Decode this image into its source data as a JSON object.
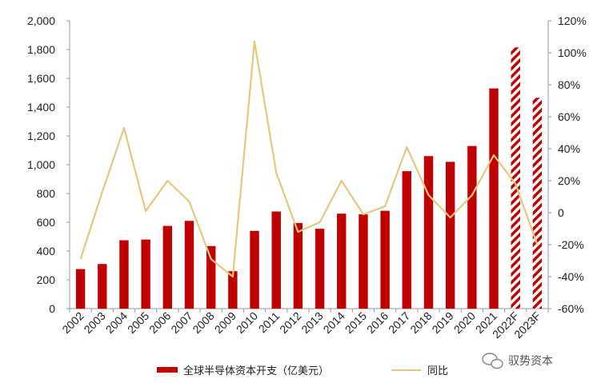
{
  "chart_data": {
    "type": "bar",
    "categories": [
      "2002",
      "2003",
      "2004",
      "2005",
      "2006",
      "2007",
      "2008",
      "2009",
      "2010",
      "2011",
      "2012",
      "2013",
      "2014",
      "2015",
      "2016",
      "2017",
      "2018",
      "2019",
      "2020",
      "2021",
      "2022F",
      "2023F"
    ],
    "series": [
      {
        "name": "全球半导体资本开支（亿美元）",
        "type": "bar",
        "axis": "left",
        "color": "#c00000",
        "values": [
          275,
          310,
          475,
          480,
          575,
          610,
          435,
          260,
          540,
          675,
          595,
          555,
          660,
          655,
          680,
          955,
          1060,
          1020,
          1130,
          1530,
          1815,
          1465
        ],
        "forecast": [
          false,
          false,
          false,
          false,
          false,
          false,
          false,
          false,
          false,
          false,
          false,
          false,
          false,
          false,
          false,
          false,
          false,
          false,
          false,
          false,
          true,
          true
        ]
      },
      {
        "name": "同比",
        "type": "line",
        "axis": "right",
        "color": "#e6c77e",
        "values": [
          -29,
          13,
          53,
          1,
          20,
          7,
          -29,
          -40,
          107,
          25,
          -12,
          -6,
          20,
          -1,
          4,
          41,
          11,
          -3,
          11,
          36,
          18,
          -20
        ]
      }
    ],
    "y_left": {
      "min": 0,
      "max": 2000,
      "step": 200,
      "tick_labels": [
        "0",
        "200",
        "400",
        "600",
        "800",
        "1,000",
        "1,200",
        "1,400",
        "1,600",
        "1,800",
        "2,000"
      ]
    },
    "y_right": {
      "min": -60,
      "max": 120,
      "step": 20,
      "tick_labels": [
        "-60%",
        "-40%",
        "-20%",
        "0",
        "20%",
        "40%",
        "60%",
        "80%",
        "100%",
        "120%"
      ]
    },
    "legend_position": "bottom",
    "grid": false
  },
  "legend": {
    "bar_label": "全球半导体资本开支（亿美元）",
    "line_label": "同比"
  },
  "watermark": {
    "text": "驭势资本",
    "icon": "wechat-icon"
  }
}
